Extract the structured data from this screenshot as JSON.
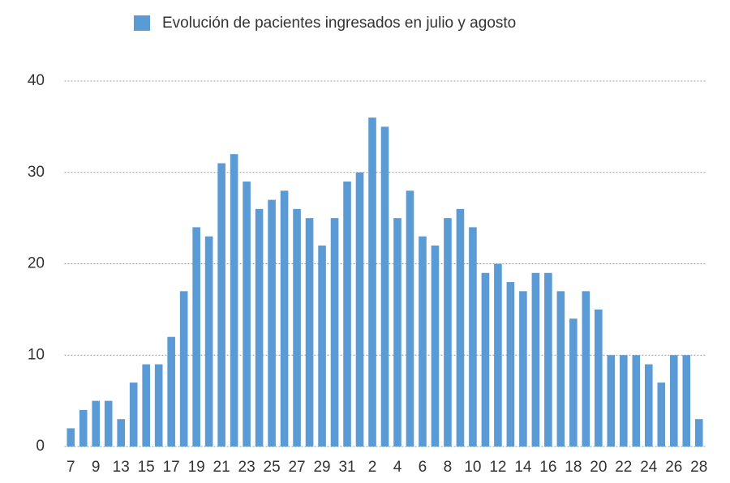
{
  "chart_data": {
    "type": "bar",
    "series": [
      {
        "name": "Evolución de pacientes ingresados en julio y agosto",
        "color": "#5b9bd5",
        "values": [
          2,
          4,
          5,
          5,
          3,
          7,
          9,
          9,
          12,
          17,
          24,
          23,
          31,
          32,
          29,
          26,
          27,
          28,
          26,
          25,
          22,
          25,
          29,
          30,
          36,
          35,
          25,
          28,
          23,
          22,
          25,
          26,
          24,
          19,
          20,
          18,
          17,
          19,
          19,
          17,
          14,
          17,
          15,
          10,
          10,
          10,
          9,
          7,
          10,
          10,
          3
        ]
      }
    ],
    "categories": [
      "7",
      null,
      "9",
      null,
      "13",
      null,
      "15",
      null,
      "17",
      null,
      "19",
      null,
      "21",
      null,
      "23",
      null,
      "25",
      null,
      "27",
      null,
      "29",
      null,
      "31",
      null,
      "2",
      null,
      "4",
      null,
      "6",
      null,
      "8",
      null,
      "10",
      null,
      "12",
      null,
      "14",
      null,
      "16",
      null,
      "18",
      null,
      "20",
      null,
      "22",
      null,
      "24",
      null,
      "26",
      null,
      "28"
    ],
    "ylim": [
      0,
      40
    ],
    "yticks": [
      0,
      10,
      20,
      30,
      40
    ],
    "grid": true,
    "legend": "top"
  }
}
